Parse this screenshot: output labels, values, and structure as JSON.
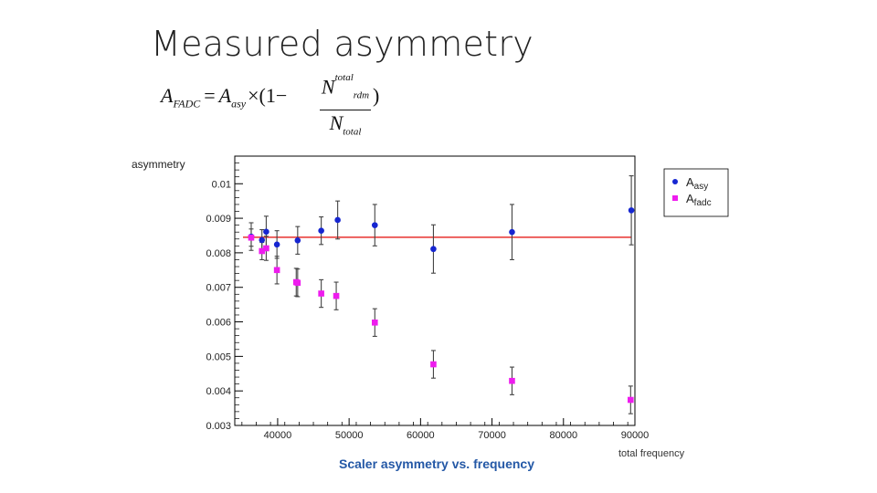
{
  "slide": {
    "title": "Measured asymmetry"
  },
  "formula": {
    "lhs": "A",
    "lhs_sub": "FADC",
    "eq": "=",
    "coef": "A",
    "coef_sub": "asy",
    "times": "×(1−",
    "num": "N",
    "num_sup": "total",
    "num_sub": "rdm",
    "den": "N",
    "den_sub": "total",
    "close": ")"
  },
  "chart_data": {
    "type": "scatter",
    "title": "Scaler asymmetry vs. frequency",
    "xlabel": "total frequency",
    "ylabel": "asymmetry",
    "xlim": [
      34000,
      90000
    ],
    "ylim": [
      0.003,
      0.0108
    ],
    "xticks": [
      40000,
      50000,
      60000,
      70000,
      80000,
      90000
    ],
    "xtick_labels": [
      "40000",
      "50000",
      "60000",
      "70000",
      "80000",
      "90000"
    ],
    "yticks": [
      0.003,
      0.004,
      0.005,
      0.006,
      0.007,
      0.008,
      0.009,
      0.01
    ],
    "ytick_labels": [
      "0.003",
      "0.004",
      "0.005",
      "0.006",
      "0.007",
      "0.008",
      "0.009",
      "0.01"
    ],
    "grid": false,
    "legend_position": "top-right",
    "fit_line": {
      "y": 0.00845,
      "color": "#e8322e"
    },
    "series": [
      {
        "name": "Aasy",
        "legend_main": "A",
        "legend_sub": "asy",
        "marker": "circle",
        "color": "#1626d1",
        "points": [
          {
            "x": 36300,
            "y": 0.00847,
            "err": 0.0004
          },
          {
            "x": 37800,
            "y": 0.00837,
            "err": 0.0003
          },
          {
            "x": 38400,
            "y": 0.00861,
            "err": 0.00045
          },
          {
            "x": 39900,
            "y": 0.00824,
            "err": 0.0004
          },
          {
            "x": 42800,
            "y": 0.00836,
            "err": 0.0004
          },
          {
            "x": 46100,
            "y": 0.00864,
            "err": 0.0004
          },
          {
            "x": 48400,
            "y": 0.00895,
            "err": 0.00055
          },
          {
            "x": 53600,
            "y": 0.0088,
            "err": 0.0006
          },
          {
            "x": 61800,
            "y": 0.00811,
            "err": 0.0007
          },
          {
            "x": 72800,
            "y": 0.0086,
            "err": 0.0008
          },
          {
            "x": 89500,
            "y": 0.00923,
            "err": 0.001
          }
        ]
      },
      {
        "name": "Afadc",
        "legend_main": "A",
        "legend_sub": "fadc",
        "marker": "square",
        "color": "#ee1cee",
        "points": [
          {
            "x": 36300,
            "y": 0.00844,
            "err": 0.00025
          },
          {
            "x": 37800,
            "y": 0.00805,
            "err": 0.00025
          },
          {
            "x": 38400,
            "y": 0.00813,
            "err": 0.00035
          },
          {
            "x": 39900,
            "y": 0.0075,
            "err": 0.0004
          },
          {
            "x": 42600,
            "y": 0.00715,
            "err": 0.0004
          },
          {
            "x": 42800,
            "y": 0.00713,
            "err": 0.0004
          },
          {
            "x": 46100,
            "y": 0.00682,
            "err": 0.0004
          },
          {
            "x": 48200,
            "y": 0.00675,
            "err": 0.0004
          },
          {
            "x": 53600,
            "y": 0.00598,
            "err": 0.0004
          },
          {
            "x": 61800,
            "y": 0.00477,
            "err": 0.0004
          },
          {
            "x": 72800,
            "y": 0.00429,
            "err": 0.0004
          },
          {
            "x": 89400,
            "y": 0.00374,
            "err": 0.0004
          }
        ]
      }
    ]
  }
}
